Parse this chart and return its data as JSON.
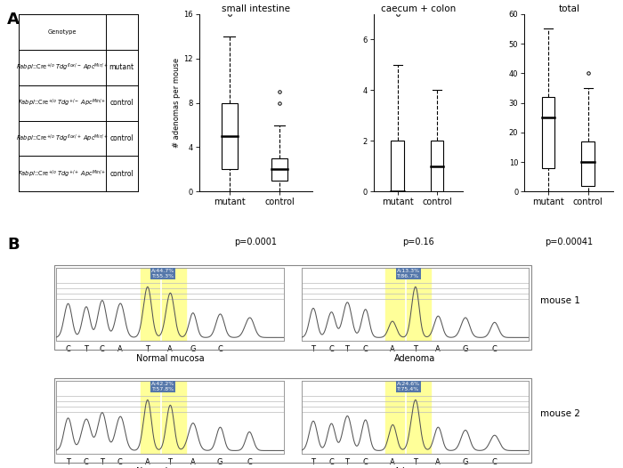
{
  "panel_A_label": "A",
  "panel_B_label": "B",
  "box_titles": [
    "small intestine",
    "caecum + colon",
    "total"
  ],
  "box_pvalues": [
    "p=0.0001",
    "p=0.16",
    "p=0.00041"
  ],
  "ylabel": "# adenomas per mouse",
  "si_mutant": {
    "whisker_lo": 0,
    "q1": 2,
    "median": 5,
    "q3": 8,
    "whisker_hi": 14,
    "outliers": [
      16
    ]
  },
  "si_control": {
    "whisker_lo": 0,
    "q1": 1,
    "median": 2,
    "q3": 3,
    "whisker_hi": 6,
    "outliers": [
      8,
      9
    ]
  },
  "cc_mutant": {
    "whisker_lo": 0,
    "q1": 0,
    "median": 0,
    "q3": 2,
    "whisker_hi": 5,
    "outliers": [
      7
    ]
  },
  "cc_control": {
    "whisker_lo": 0,
    "q1": 0,
    "median": 1,
    "q3": 2,
    "whisker_hi": 4,
    "outliers": []
  },
  "tot_mutant": {
    "whisker_lo": 0,
    "q1": 8,
    "median": 25,
    "q3": 32,
    "whisker_hi": 55,
    "outliers": []
  },
  "tot_control": {
    "whisker_lo": 0,
    "q1": 2,
    "median": 10,
    "q3": 17,
    "whisker_hi": 35,
    "outliers": [
      40
    ]
  },
  "si_ylim": [
    0,
    16
  ],
  "cc_ylim": [
    0,
    7
  ],
  "tot_ylim": [
    0,
    60
  ],
  "si_yticks": [
    0,
    4,
    8,
    12,
    16
  ],
  "cc_yticks": [
    0,
    2,
    4,
    6
  ],
  "tot_yticks": [
    0,
    10,
    20,
    30,
    40,
    50,
    60
  ],
  "mouse1_label": "mouse 1",
  "mouse2_label": "mouse 2",
  "nm1_label": "Normal mucosa",
  "ad1_label": "Adenoma",
  "nm2_label": "Normal mucosa",
  "ad2_label": "Adenoma",
  "bases_m1_nm": [
    "C",
    "T",
    "C",
    "A",
    "T",
    "A",
    "G",
    "C"
  ],
  "bases_m1_ad": [
    "T",
    "C",
    "T",
    "C",
    "A",
    "T",
    "A",
    "G",
    "C"
  ],
  "bases_m2_nm": [
    "T",
    "C",
    "T",
    "C",
    "A",
    "T",
    "A",
    "G",
    "C"
  ],
  "bases_m2_ad": [
    "T",
    "C",
    "T",
    "C",
    "A",
    "T",
    "A",
    "G",
    "C"
  ],
  "yellow_highlight": "#FFFF99",
  "blue_box_color": "#5577AA",
  "trace_color": "#555555",
  "m1_nm_label": "A:44.7%\nT:55.3%",
  "m1_ad_label": "A:13.3%\nT:86.7%",
  "m2_nm_label": "A:42.2%\nT:57.8%",
  "m2_ad_label": "A:24.6%\nT:75.4%",
  "fig_bg": "#ffffff"
}
